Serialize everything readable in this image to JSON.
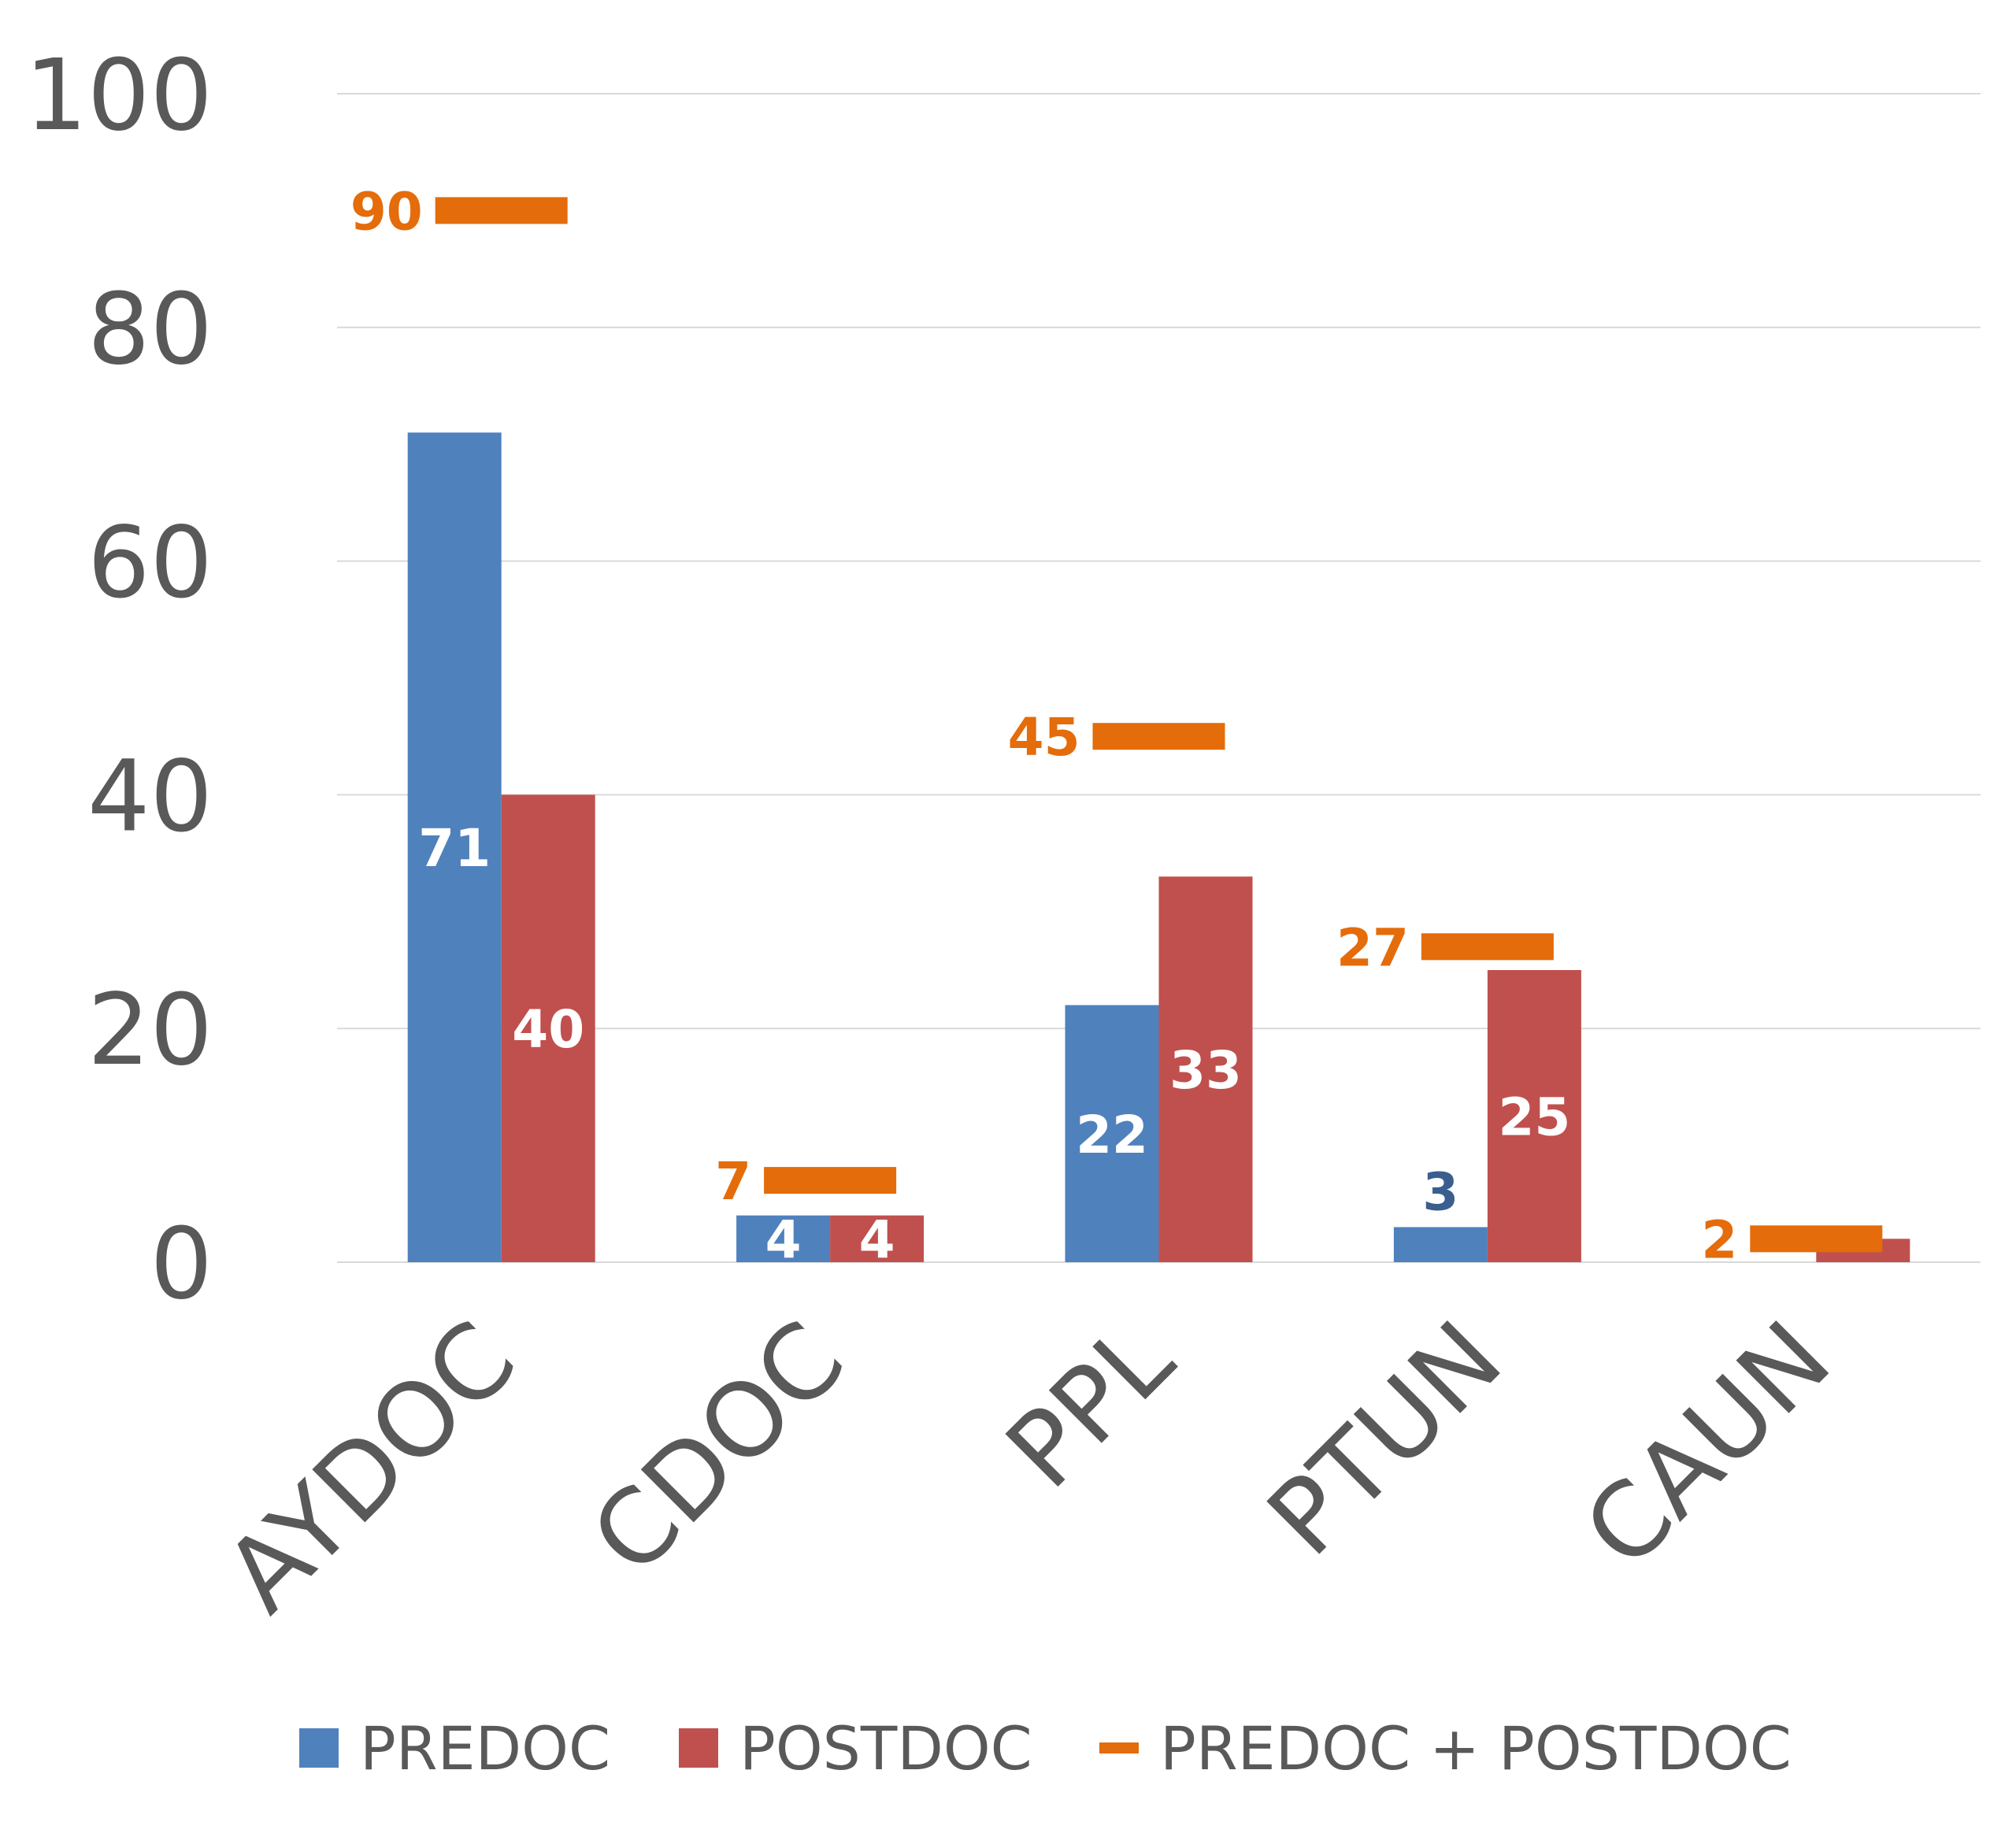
{
  "chart_data": {
    "type": "bar",
    "title": "",
    "xlabel": "",
    "ylabel": "",
    "ylim": [
      0,
      100
    ],
    "yticks": [
      "0",
      "20",
      "40",
      "60",
      "80",
      "100"
    ],
    "grid": true,
    "categories": [
      "AYDOC",
      "CDOC",
      "PPL",
      "PTUN",
      "CAUN"
    ],
    "series": [
      {
        "name": "PREDOC",
        "type": "bar",
        "color": "#4F81BD",
        "values": [
          71,
          4,
          22,
          3,
          0
        ],
        "labels": [
          "71",
          "4",
          "22",
          "3",
          ""
        ]
      },
      {
        "name": "POSTDOC",
        "type": "bar",
        "color": "#C0504D",
        "values": [
          40,
          4,
          33,
          25,
          2
        ],
        "labels": [
          "40",
          "4",
          "33",
          "25",
          ""
        ]
      },
      {
        "name": "PREDOC + POSTDOC",
        "type": "marker",
        "color": "#E46C0A",
        "values": [
          90,
          7,
          45,
          27,
          2
        ],
        "labels": [
          "90",
          "7",
          "45",
          "27",
          "2"
        ]
      }
    ],
    "legend_position": "bottom"
  },
  "colors": {
    "axis_text": "#595959",
    "grid": "#D9D9D9",
    "predoc_outside_label": "#3A5F8F"
  }
}
